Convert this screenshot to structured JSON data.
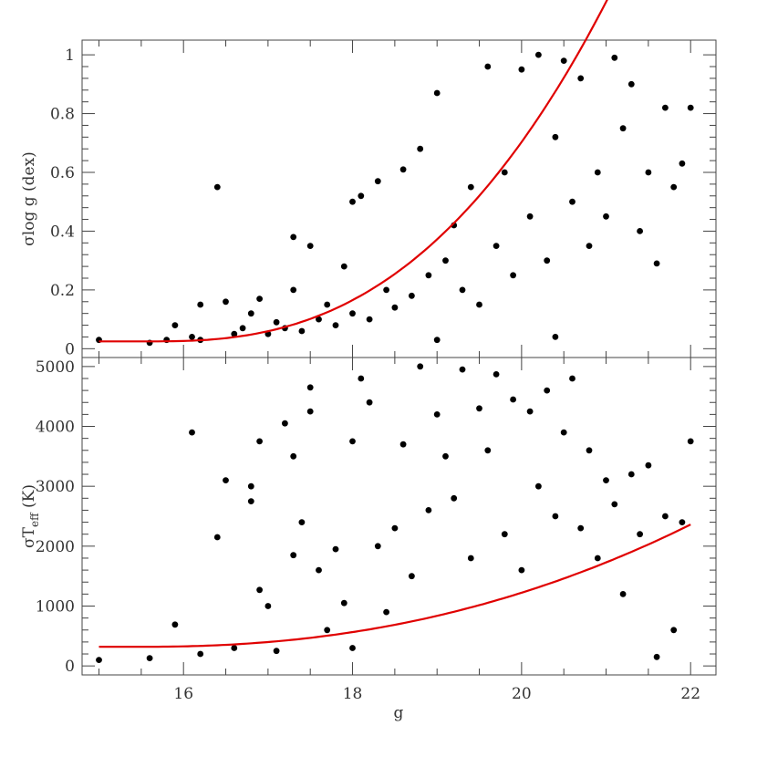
{
  "chart_data": {
    "type": "scatter",
    "shared_xlabel": "g",
    "x_range": [
      14.8,
      22.3
    ],
    "x_ticks": [
      16,
      18,
      20,
      22
    ],
    "panels": [
      {
        "name": "logg",
        "ylabel": "σlog g (dex)",
        "ylim": [
          -0.03,
          1.05
        ],
        "y_ticks": [
          0,
          0.2,
          0.4,
          0.6,
          0.8,
          1
        ],
        "y_tick_labels": [
          "0",
          "0.2",
          "0.4",
          "0.6",
          "0.8",
          "1"
        ],
        "fit": {
          "x_start": 15.0,
          "x_end": 22.0,
          "a": 0.025,
          "b": 0.0144,
          "x0": 15.6,
          "p": 2.6
        },
        "points": [
          {
            "x": 15.0,
            "y": 0.03
          },
          {
            "x": 15.6,
            "y": 0.02
          },
          {
            "x": 15.8,
            "y": 0.03
          },
          {
            "x": 15.9,
            "y": 0.08
          },
          {
            "x": 16.1,
            "y": 0.04
          },
          {
            "x": 16.2,
            "y": 0.03
          },
          {
            "x": 16.2,
            "y": 0.15
          },
          {
            "x": 16.4,
            "y": 0.55
          },
          {
            "x": 16.5,
            "y": 0.16
          },
          {
            "x": 16.6,
            "y": 0.05
          },
          {
            "x": 16.7,
            "y": 0.07
          },
          {
            "x": 16.8,
            "y": 0.12
          },
          {
            "x": 16.9,
            "y": 0.17
          },
          {
            "x": 17.0,
            "y": 0.05
          },
          {
            "x": 17.1,
            "y": 0.09
          },
          {
            "x": 17.2,
            "y": 0.07
          },
          {
            "x": 17.3,
            "y": 0.38
          },
          {
            "x": 17.3,
            "y": 0.2
          },
          {
            "x": 17.4,
            "y": 0.06
          },
          {
            "x": 17.5,
            "y": 0.35
          },
          {
            "x": 17.6,
            "y": 0.1
          },
          {
            "x": 17.7,
            "y": 0.15
          },
          {
            "x": 17.8,
            "y": 0.08
          },
          {
            "x": 17.9,
            "y": 0.28
          },
          {
            "x": 18.0,
            "y": 0.12
          },
          {
            "x": 18.0,
            "y": 0.5
          },
          {
            "x": 18.1,
            "y": 0.52
          },
          {
            "x": 18.2,
            "y": 0.1
          },
          {
            "x": 18.3,
            "y": 0.57
          },
          {
            "x": 18.4,
            "y": 0.2
          },
          {
            "x": 18.5,
            "y": 0.14
          },
          {
            "x": 18.6,
            "y": 0.61
          },
          {
            "x": 18.7,
            "y": 0.18
          },
          {
            "x": 18.8,
            "y": 0.68
          },
          {
            "x": 18.9,
            "y": 0.25
          },
          {
            "x": 19.0,
            "y": 0.87
          },
          {
            "x": 19.0,
            "y": 0.03
          },
          {
            "x": 19.1,
            "y": 0.3
          },
          {
            "x": 19.2,
            "y": 0.42
          },
          {
            "x": 19.3,
            "y": 0.2
          },
          {
            "x": 19.4,
            "y": 0.55
          },
          {
            "x": 19.5,
            "y": 0.15
          },
          {
            "x": 19.6,
            "y": 0.96
          },
          {
            "x": 19.7,
            "y": 0.35
          },
          {
            "x": 19.8,
            "y": 0.6
          },
          {
            "x": 19.9,
            "y": 0.25
          },
          {
            "x": 20.0,
            "y": 0.95
          },
          {
            "x": 20.1,
            "y": 0.45
          },
          {
            "x": 20.2,
            "y": 1.0
          },
          {
            "x": 20.3,
            "y": 0.3
          },
          {
            "x": 20.4,
            "y": 0.72
          },
          {
            "x": 20.4,
            "y": 0.04
          },
          {
            "x": 20.5,
            "y": 0.98
          },
          {
            "x": 20.6,
            "y": 0.5
          },
          {
            "x": 20.7,
            "y": 0.92
          },
          {
            "x": 20.8,
            "y": 0.35
          },
          {
            "x": 20.9,
            "y": 0.6
          },
          {
            "x": 21.0,
            "y": 0.45
          },
          {
            "x": 21.1,
            "y": 0.99
          },
          {
            "x": 21.2,
            "y": 0.75
          },
          {
            "x": 21.3,
            "y": 0.9
          },
          {
            "x": 21.4,
            "y": 0.4
          },
          {
            "x": 21.5,
            "y": 0.6
          },
          {
            "x": 21.6,
            "y": 0.29
          },
          {
            "x": 21.7,
            "y": 0.82
          },
          {
            "x": 21.8,
            "y": 0.55
          },
          {
            "x": 21.9,
            "y": 0.63
          },
          {
            "x": 22.0,
            "y": 0.82
          }
        ]
      },
      {
        "name": "teff",
        "ylabel": "σT",
        "ylabel_sub": "eff",
        "ylabel_suffix": " (K)",
        "ylim": [
          -150,
          5150
        ],
        "y_ticks": [
          0,
          1000,
          2000,
          3000,
          4000,
          5000
        ],
        "y_tick_labels": [
          "0",
          "1000",
          "2000",
          "3000",
          "4000",
          "5000"
        ],
        "fit": {
          "x_start": 15.0,
          "x_end": 22.0,
          "a": 320,
          "b": 32,
          "x0": 15.5,
          "p": 2.22
        },
        "points": [
          {
            "x": 15.0,
            "y": 100
          },
          {
            "x": 15.6,
            "y": 130
          },
          {
            "x": 15.9,
            "y": 690
          },
          {
            "x": 16.1,
            "y": 3900
          },
          {
            "x": 16.2,
            "y": 200
          },
          {
            "x": 16.4,
            "y": 2150
          },
          {
            "x": 16.5,
            "y": 3100
          },
          {
            "x": 16.6,
            "y": 300
          },
          {
            "x": 16.8,
            "y": 2750
          },
          {
            "x": 16.8,
            "y": 3000
          },
          {
            "x": 16.9,
            "y": 3750
          },
          {
            "x": 16.9,
            "y": 1270
          },
          {
            "x": 17.0,
            "y": 1000
          },
          {
            "x": 17.1,
            "y": 250
          },
          {
            "x": 17.2,
            "y": 4050
          },
          {
            "x": 17.3,
            "y": 1850
          },
          {
            "x": 17.3,
            "y": 3500
          },
          {
            "x": 17.4,
            "y": 2400
          },
          {
            "x": 17.5,
            "y": 4250
          },
          {
            "x": 17.5,
            "y": 4650
          },
          {
            "x": 17.6,
            "y": 1600
          },
          {
            "x": 17.7,
            "y": 600
          },
          {
            "x": 17.8,
            "y": 1950
          },
          {
            "x": 17.9,
            "y": 1050
          },
          {
            "x": 18.0,
            "y": 3750
          },
          {
            "x": 18.0,
            "y": 300
          },
          {
            "x": 18.1,
            "y": 4800
          },
          {
            "x": 18.2,
            "y": 4400
          },
          {
            "x": 18.3,
            "y": 2000
          },
          {
            "x": 18.4,
            "y": 900
          },
          {
            "x": 18.5,
            "y": 2300
          },
          {
            "x": 18.6,
            "y": 3700
          },
          {
            "x": 18.7,
            "y": 1500
          },
          {
            "x": 18.8,
            "y": 5000
          },
          {
            "x": 18.9,
            "y": 2600
          },
          {
            "x": 19.0,
            "y": 4200
          },
          {
            "x": 19.1,
            "y": 3500
          },
          {
            "x": 19.2,
            "y": 2800
          },
          {
            "x": 19.3,
            "y": 4950
          },
          {
            "x": 19.4,
            "y": 1800
          },
          {
            "x": 19.5,
            "y": 4300
          },
          {
            "x": 19.6,
            "y": 3600
          },
          {
            "x": 19.7,
            "y": 4870
          },
          {
            "x": 19.8,
            "y": 2200
          },
          {
            "x": 19.9,
            "y": 4450
          },
          {
            "x": 20.0,
            "y": 1600
          },
          {
            "x": 20.1,
            "y": 4250
          },
          {
            "x": 20.2,
            "y": 3000
          },
          {
            "x": 20.3,
            "y": 4600
          },
          {
            "x": 20.4,
            "y": 2500
          },
          {
            "x": 20.5,
            "y": 3900
          },
          {
            "x": 20.6,
            "y": 4800
          },
          {
            "x": 20.7,
            "y": 2300
          },
          {
            "x": 20.8,
            "y": 3600
          },
          {
            "x": 20.9,
            "y": 1800
          },
          {
            "x": 21.0,
            "y": 3100
          },
          {
            "x": 21.1,
            "y": 2700
          },
          {
            "x": 21.2,
            "y": 1200
          },
          {
            "x": 21.3,
            "y": 3200
          },
          {
            "x": 21.4,
            "y": 2200
          },
          {
            "x": 21.5,
            "y": 3350
          },
          {
            "x": 21.6,
            "y": 150
          },
          {
            "x": 21.7,
            "y": 2500
          },
          {
            "x": 21.8,
            "y": 600
          },
          {
            "x": 21.9,
            "y": 2400
          },
          {
            "x": 22.0,
            "y": 3750
          }
        ]
      }
    ]
  }
}
